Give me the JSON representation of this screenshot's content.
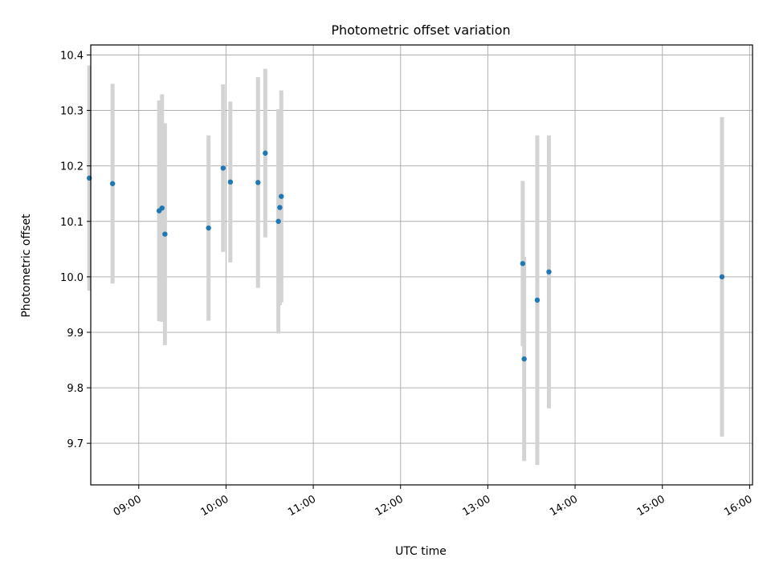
{
  "chart_data": {
    "type": "scatter",
    "title": "Photometric offset variation",
    "xlabel": "UTC time",
    "ylabel": "Photometric offset",
    "x_ticks": [
      "09:00",
      "10:00",
      "11:00",
      "12:00",
      "13:00",
      "14:00",
      "15:00",
      "16:00"
    ],
    "y_ticks": [
      "9.7",
      "9.8",
      "9.9",
      "10.0",
      "10.1",
      "10.2",
      "10.3",
      "10.4"
    ],
    "xlim": [
      "08:27",
      "16:02"
    ],
    "ylim": [
      9.625,
      10.418
    ],
    "grid": true,
    "series": [
      {
        "marker_color": "#1f77b4",
        "errorbar_color": "#d3d3d3",
        "points": [
          {
            "x": "08:26",
            "y": 10.178,
            "yerr": 0.203
          },
          {
            "x": "08:42",
            "y": 10.168,
            "yerr": 0.18
          },
          {
            "x": "09:14",
            "y": 10.119,
            "yerr": 0.199
          },
          {
            "x": "09:16",
            "y": 10.124,
            "yerr": 0.205
          },
          {
            "x": "09:18",
            "y": 10.077,
            "yerr": 0.2
          },
          {
            "x": "09:48",
            "y": 10.088,
            "yerr": 0.167
          },
          {
            "x": "09:58",
            "y": 10.196,
            "yerr": 0.151
          },
          {
            "x": "10:03",
            "y": 10.171,
            "yerr": 0.145
          },
          {
            "x": "10:22",
            "y": 10.17,
            "yerr": 0.19
          },
          {
            "x": "10:27",
            "y": 10.223,
            "yerr": 0.152
          },
          {
            "x": "10:36",
            "y": 10.1,
            "yerr": 0.202
          },
          {
            "x": "10:37",
            "y": 10.125,
            "yerr": 0.176
          },
          {
            "x": "10:38",
            "y": 10.145,
            "yerr": 0.191
          },
          {
            "x": "13:24",
            "y": 10.024,
            "yerr": 0.149
          },
          {
            "x": "13:25",
            "y": 9.852,
            "yerr": 0.184
          },
          {
            "x": "13:34",
            "y": 9.958,
            "yerr": 0.297
          },
          {
            "x": "13:42",
            "y": 10.009,
            "yerr": 0.246
          },
          {
            "x": "15:41",
            "y": 10.0,
            "yerr": 0.288
          }
        ]
      }
    ]
  }
}
